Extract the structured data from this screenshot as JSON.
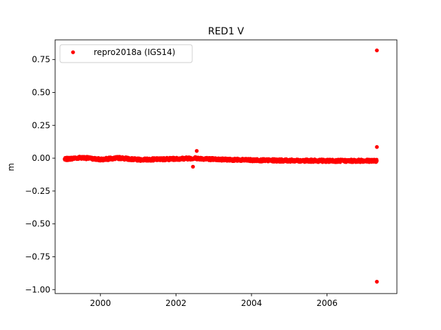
{
  "chart_data": {
    "type": "scatter",
    "title": "RED1 V",
    "xlabel": "",
    "ylabel": "m",
    "xlim": [
      1998.8,
      2007.85
    ],
    "ylim": [
      -1.03,
      0.9
    ],
    "xticks": [
      2000,
      2002,
      2004,
      2006
    ],
    "yticks": [
      0.75,
      0.5,
      0.25,
      0.0,
      -0.25,
      -0.5,
      -0.75,
      -1.0
    ],
    "ytick_labels": [
      "0.75",
      "0.50",
      "0.25",
      "0.00",
      "−0.25",
      "−0.50",
      "−0.75",
      "−1.00"
    ],
    "grid": false,
    "legend_position": "top-left",
    "series": [
      {
        "name": "repro2018a (IGS14)",
        "color": "#ff0000",
        "marker": "dot",
        "x_start": 1999.05,
        "x_end": 2007.32,
        "baseline": [
          [
            1999.05,
            -0.008
          ],
          [
            1999.5,
            0.005
          ],
          [
            2000.0,
            -0.01
          ],
          [
            2000.5,
            0.002
          ],
          [
            2001.0,
            -0.012
          ],
          [
            2002.0,
            -0.005
          ],
          [
            2002.5,
            0.0
          ],
          [
            2003.0,
            -0.008
          ],
          [
            2004.0,
            -0.015
          ],
          [
            2005.0,
            -0.018
          ],
          [
            2006.0,
            -0.02
          ],
          [
            2007.32,
            -0.02
          ]
        ],
        "outliers": [
          [
            2007.32,
            0.82
          ],
          [
            2007.32,
            0.085
          ],
          [
            2007.32,
            -0.94
          ],
          [
            2002.55,
            0.055
          ],
          [
            2002.45,
            -0.065
          ]
        ]
      }
    ]
  }
}
